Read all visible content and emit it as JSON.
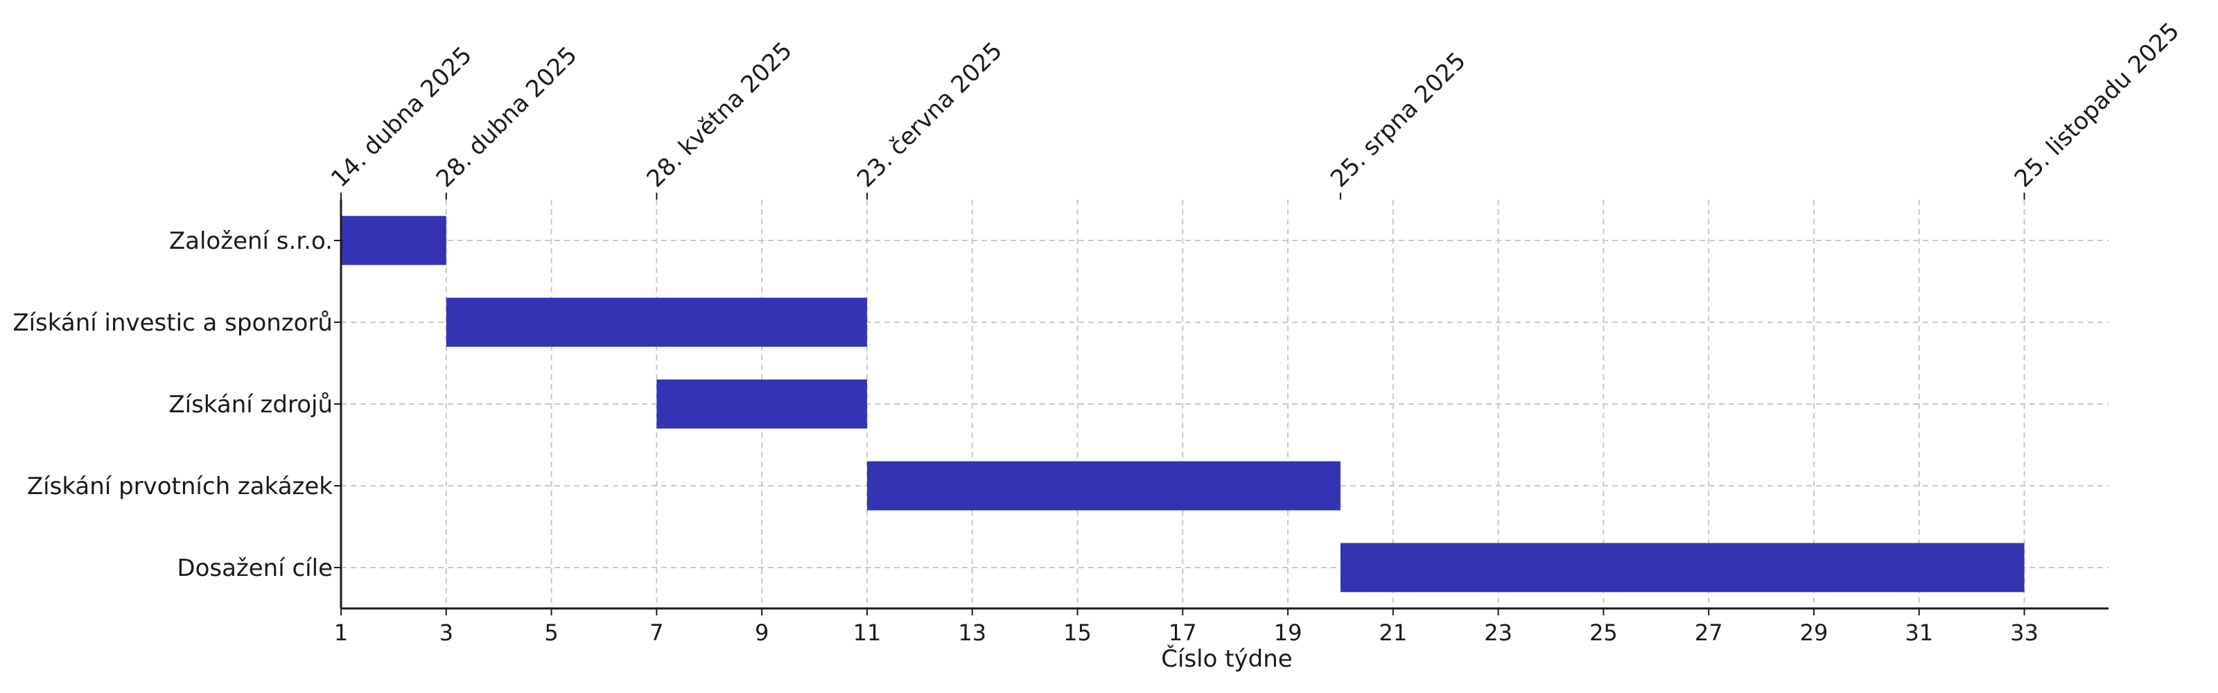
{
  "chart_data": {
    "type": "gantt",
    "xlabel": "Číslo týdne",
    "xlim": [
      1,
      34.6
    ],
    "x_ticks": [
      1,
      3,
      5,
      7,
      9,
      11,
      13,
      15,
      17,
      19,
      21,
      23,
      25,
      27,
      29,
      31,
      33
    ],
    "grid": true,
    "bar_color": "#3333b3",
    "tasks": [
      {
        "name": "Založení s.r.o.",
        "start": 1,
        "end": 3
      },
      {
        "name": "Získání investic a sponzorů",
        "start": 3,
        "end": 11
      },
      {
        "name": "Získání zdrojů",
        "start": 7,
        "end": 11
      },
      {
        "name": "Získání prvotních zakázek",
        "start": 11,
        "end": 20
      },
      {
        "name": "Dosažení cíle",
        "start": 20,
        "end": 33
      }
    ],
    "milestones": [
      {
        "week": 1,
        "label": "14. dubna 2025"
      },
      {
        "week": 3,
        "label": "28. dubna 2025"
      },
      {
        "week": 7,
        "label": "28. května 2025"
      },
      {
        "week": 11,
        "label": "23. června 2025"
      },
      {
        "week": 20,
        "label": "25. srpna 2025"
      },
      {
        "week": 33,
        "label": "25. listopadu 2025"
      }
    ]
  }
}
